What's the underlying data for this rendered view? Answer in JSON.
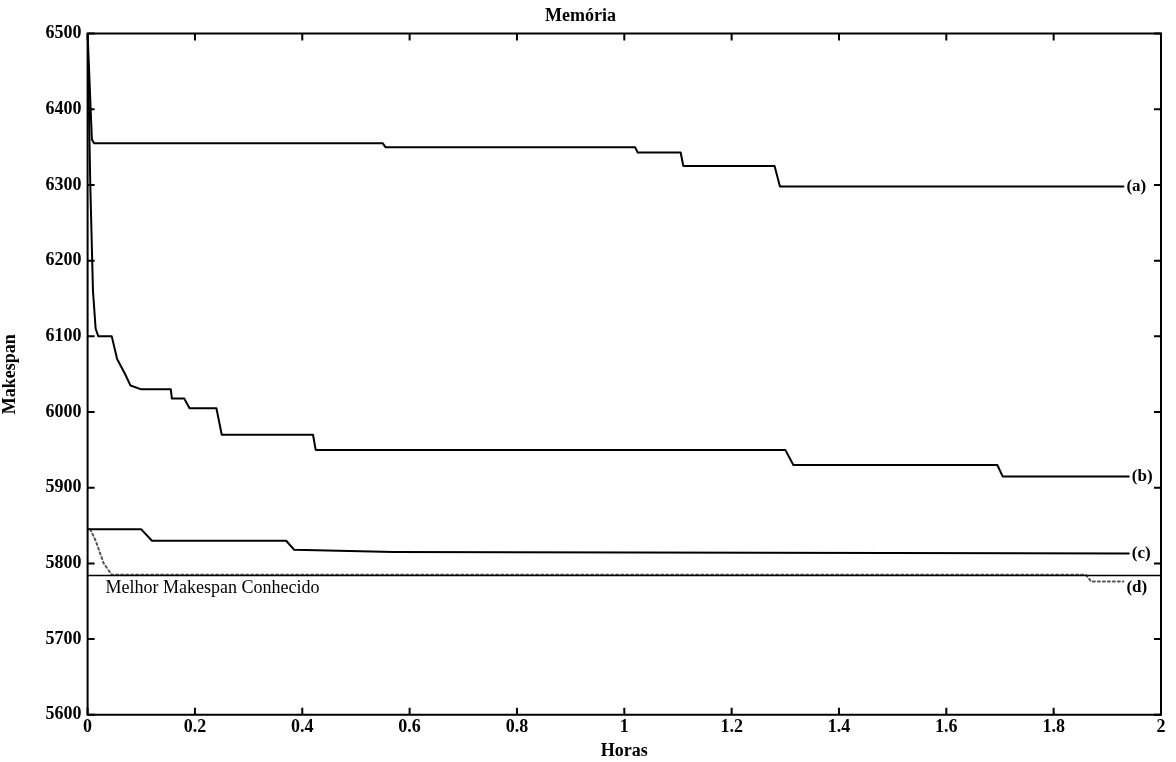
{
  "chart_data": {
    "type": "line",
    "title": "Memória",
    "xlabel": "Horas",
    "ylabel": "Makespan",
    "xlim": [
      0,
      2
    ],
    "xticks": [
      0,
      0.2,
      0.4,
      0.6,
      0.8,
      1,
      1.2,
      1.4,
      1.6,
      1.8,
      2
    ],
    "ylim": [
      5600,
      6500
    ],
    "yticks": [
      5600,
      5700,
      5800,
      5900,
      6000,
      6100,
      6200,
      6300,
      6400,
      6500
    ],
    "legend": "right",
    "marker": "none",
    "series": [
      {
        "name": "(a)",
        "color": "#000000",
        "line_style": "solid",
        "x": [
          0,
          0.008,
          0.012,
          0.55,
          0.555,
          1.02,
          1.025,
          1.105,
          1.11,
          1.28,
          1.29,
          1.93
        ],
        "values": [
          6500,
          6360,
          6355,
          6355,
          6350,
          6350,
          6343,
          6343,
          6325,
          6325,
          6298,
          6298
        ]
      },
      {
        "name": "(b)",
        "color": "#000000",
        "line_style": "solid",
        "x": [
          0,
          0.005,
          0.01,
          0.015,
          0.02,
          0.045,
          0.055,
          0.07,
          0.08,
          0.1,
          0.155,
          0.157,
          0.18,
          0.19,
          0.24,
          0.25,
          0.42,
          0.425,
          1.3,
          1.315,
          1.695,
          1.705,
          1.94
        ],
        "values": [
          6500,
          6300,
          6160,
          6110,
          6100,
          6100,
          6070,
          6050,
          6035,
          6030,
          6030,
          6018,
          6018,
          6005,
          6005,
          5970,
          5970,
          5950,
          5950,
          5930,
          5930,
          5915,
          5915
        ]
      },
      {
        "name": "(c)",
        "color": "#000000",
        "line_style": "solid",
        "x": [
          0,
          0.1,
          0.12,
          0.37,
          0.385,
          0.57,
          1.94
        ],
        "values": [
          5845,
          5845,
          5830,
          5830,
          5818,
          5815,
          5813
        ]
      },
      {
        "name": "(d)",
        "color": "#555555",
        "line_style": "dotted",
        "x": [
          0.005,
          0.015,
          0.03,
          0.045,
          1.86,
          1.87,
          1.93
        ],
        "values": [
          5845,
          5830,
          5800,
          5785,
          5785,
          5776,
          5776
        ]
      }
    ],
    "ref_lines": [
      {
        "axis": "y",
        "value": 5784,
        "label": "Melhor Makespan Conhecido",
        "color": "#000000",
        "line_style": "solid"
      }
    ]
  }
}
